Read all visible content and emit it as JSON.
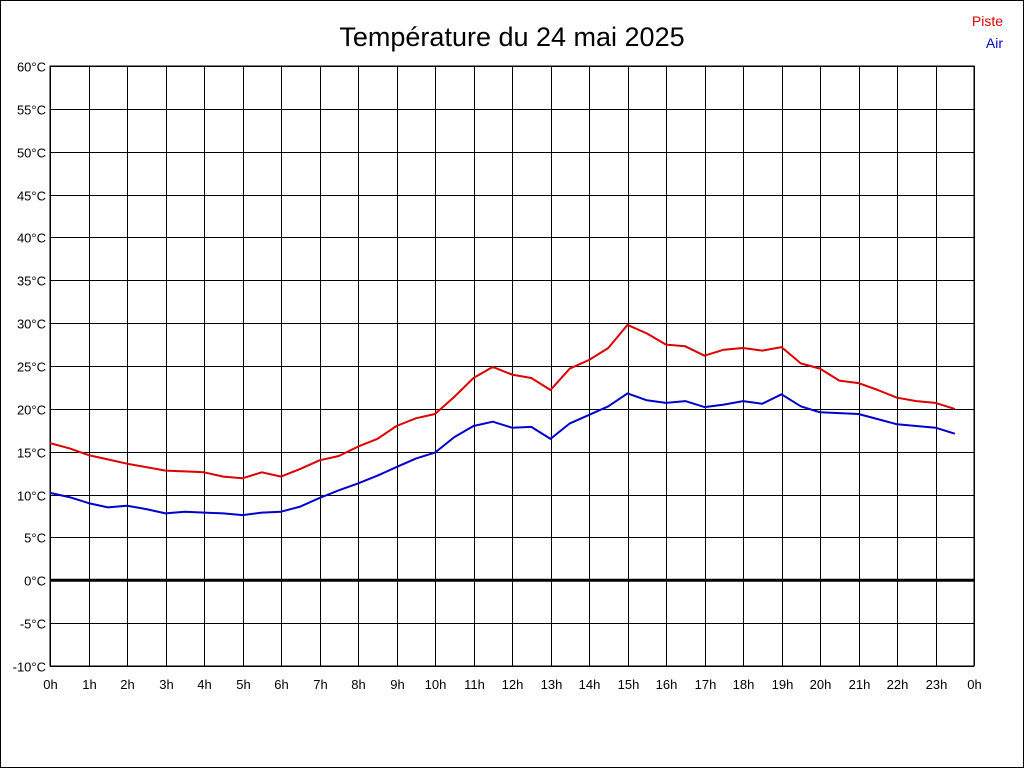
{
  "chart_data": {
    "type": "line",
    "title": "Température du 24 mai 2025",
    "xlabel": "",
    "ylabel": "",
    "x_tick_labels": [
      "0h",
      "1h",
      "2h",
      "3h",
      "4h",
      "5h",
      "6h",
      "7h",
      "8h",
      "9h",
      "10h",
      "11h",
      "12h",
      "13h",
      "14h",
      "15h",
      "16h",
      "17h",
      "18h",
      "19h",
      "20h",
      "21h",
      "22h",
      "23h",
      "0h"
    ],
    "y_ticks": [
      -10,
      -5,
      0,
      5,
      10,
      15,
      20,
      25,
      30,
      35,
      40,
      45,
      50,
      55,
      60
    ],
    "y_unit": "°C",
    "xlim": [
      0,
      24
    ],
    "ylim": [
      -10,
      60
    ],
    "grid": true,
    "zero_line": true,
    "legend_position": "top-right",
    "x": [
      0,
      0.5,
      1,
      1.5,
      2,
      2.5,
      3,
      3.5,
      4,
      4.5,
      5,
      5.5,
      6,
      6.5,
      7,
      7.5,
      8,
      8.5,
      9,
      9.5,
      10,
      10.5,
      11,
      11.5,
      12,
      12.5,
      13,
      13.5,
      14,
      14.5,
      15,
      15.5,
      16,
      16.5,
      17,
      17.5,
      18,
      18.5,
      19,
      19.5,
      20,
      20.5,
      21,
      21.5,
      22,
      22.5,
      23,
      23.5
    ],
    "series": [
      {
        "name": "Piste",
        "color": "#dd0000",
        "values": [
          16.0,
          15.4,
          14.6,
          14.1,
          13.6,
          13.2,
          12.8,
          12.7,
          12.6,
          12.1,
          11.9,
          12.6,
          12.1,
          13.0,
          14.0,
          14.5,
          15.6,
          16.5,
          18.0,
          18.9,
          19.4,
          21.4,
          23.6,
          24.9,
          24.0,
          23.6,
          22.2,
          24.7,
          25.7,
          27.1,
          29.8,
          28.8,
          27.5,
          27.3,
          26.2,
          26.9,
          27.1,
          26.8,
          27.2,
          25.3,
          24.7,
          23.3,
          23.0,
          22.2,
          21.3,
          20.9,
          20.7,
          20.0
        ]
      },
      {
        "name": "Air",
        "color": "#0000cc",
        "values": [
          10.2,
          9.7,
          9.0,
          8.5,
          8.7,
          8.3,
          7.8,
          8.0,
          7.9,
          7.8,
          7.6,
          7.9,
          8.0,
          8.6,
          9.6,
          10.5,
          11.3,
          12.2,
          13.2,
          14.2,
          14.9,
          16.7,
          18.0,
          18.5,
          17.8,
          17.9,
          16.5,
          18.3,
          19.3,
          20.3,
          21.8,
          21.0,
          20.7,
          20.9,
          20.2,
          20.5,
          20.9,
          20.6,
          21.7,
          20.3,
          19.6,
          19.5,
          19.4,
          18.8,
          18.2,
          18.0,
          17.8,
          17.1
        ]
      }
    ]
  }
}
